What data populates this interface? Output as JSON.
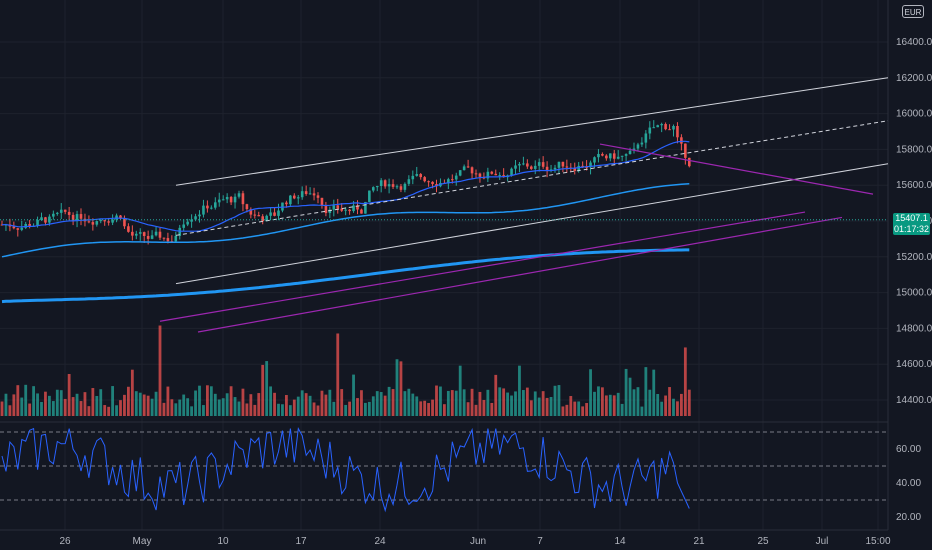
{
  "header": {
    "currency": "EUR"
  },
  "last_price": {
    "value": "15407.1",
    "countdown": "01:17:32",
    "color": "#089981"
  },
  "colors": {
    "background": "#131722",
    "grid": "#1e222d",
    "candle_up": "#26a69a",
    "candle_down": "#ef5350",
    "ma_long": "#2196f3",
    "ma_mid": "#2962ff",
    "channel": "#d1d4dc",
    "pitchfork": "#9c27b0",
    "rsi_line": "#2962ff"
  },
  "chart_data": [
    {
      "type": "candlestick",
      "name": "price",
      "x_ticks": [
        "26",
        "May",
        "10",
        "17",
        "24",
        "Jun",
        "7",
        "14",
        "21",
        "25",
        "Jul",
        "15:00"
      ],
      "y_ticks": [
        16400,
        16200,
        16000,
        15800,
        15600,
        15400,
        15200,
        15000,
        14800,
        14600,
        14400
      ],
      "ylim": [
        14300,
        16600
      ],
      "last_value": 15407.1,
      "ma_200_end": 15220,
      "ma_50_end": 15580
    },
    {
      "type": "bar",
      "name": "volume",
      "note_units": "relative"
    },
    {
      "type": "line",
      "name": "rsi",
      "y_ticks": [
        60,
        40,
        20
      ],
      "ylim": [
        10,
        75
      ],
      "levels": [
        70,
        50,
        30
      ]
    }
  ]
}
